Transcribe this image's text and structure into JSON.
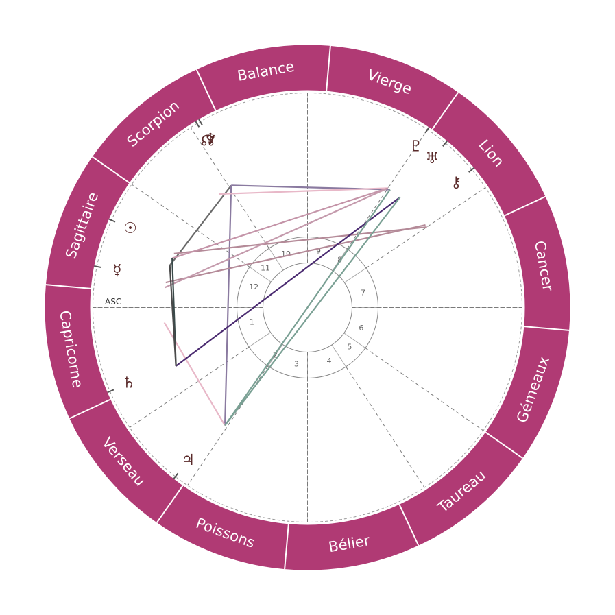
{
  "colors": {
    "ring": "#b03a74",
    "ring_divider": "#ffffff",
    "axis": "#7a7a7a",
    "house_circle": "#888888",
    "glyph": "#5a2a2a"
  },
  "asc_label": "ASC",
  "signs": [
    {
      "id": "capricorne",
      "label": "Capricorne",
      "angle": 180
    },
    {
      "id": "sagittaire",
      "label": "Sagittaire",
      "angle": 150
    },
    {
      "id": "scorpion",
      "label": "Scorpion",
      "angle": 120
    },
    {
      "id": "balance",
      "label": "Balance",
      "angle": 90
    },
    {
      "id": "vierge",
      "label": "Vierge",
      "angle": 60
    },
    {
      "id": "lion",
      "label": "Lion",
      "angle": 30
    },
    {
      "id": "cancer",
      "label": "Cancer",
      "angle": 0
    },
    {
      "id": "gemeaux",
      "label": "Gémeaux",
      "angle": -30
    },
    {
      "id": "taureau",
      "label": "Taureau",
      "angle": -60
    },
    {
      "id": "belier",
      "label": "Bélier",
      "angle": -90
    },
    {
      "id": "poissons",
      "label": "Poissons",
      "angle": -120
    },
    {
      "id": "verseau",
      "label": "Verseau",
      "angle": -150
    }
  ],
  "houses": [
    {
      "num": "1",
      "angle": -165
    },
    {
      "num": "2",
      "angle": -124
    },
    {
      "num": "3",
      "angle": -101
    },
    {
      "num": "4",
      "angle": -68
    },
    {
      "num": "5",
      "angle": -43
    },
    {
      "num": "6",
      "angle": -21
    },
    {
      "num": "7",
      "angle": 15
    },
    {
      "num": "8",
      "angle": 56
    },
    {
      "num": "9",
      "angle": 79
    },
    {
      "num": "10",
      "angle": 112
    },
    {
      "num": "11",
      "angle": 137
    },
    {
      "num": "12",
      "angle": 159
    }
  ],
  "house_cusps": [
    180,
    145,
    123,
    90,
    56,
    34,
    0,
    -35,
    -57,
    -90,
    -124,
    -146
  ],
  "planets": [
    {
      "id": "sun",
      "glyph": "☉",
      "name": "sun-icon",
      "angle": 156
    },
    {
      "id": "mercury",
      "glyph": "☿",
      "name": "mercury-icon",
      "angle": 169
    },
    {
      "id": "saturn",
      "glyph": "♄",
      "name": "saturn-icon",
      "angle": -157
    },
    {
      "id": "jupiter",
      "glyph": "♃",
      "name": "jupiter-icon",
      "angle": -128
    },
    {
      "id": "pluto",
      "glyph": "♇",
      "name": "pluto-icon",
      "angle": 56
    },
    {
      "id": "uranus",
      "glyph": "♅",
      "name": "uranus-icon",
      "angle": 50
    },
    {
      "id": "chiron",
      "glyph": "⚷",
      "name": "chiron-icon",
      "angle": 40
    },
    {
      "id": "node",
      "glyph": "☊",
      "name": "node-icon",
      "angle": 121
    },
    {
      "id": "neptune",
      "glyph": "♆",
      "name": "neptune-icon",
      "angle": 120
    }
  ],
  "aspects": [
    {
      "from": 122,
      "to": 55,
      "color": "#8a7aa0"
    },
    {
      "from": 122,
      "to": 163,
      "color": "#6a6a6a"
    },
    {
      "from": 122,
      "to": -125,
      "color": "#8a7aa0"
    },
    {
      "from": 128,
      "to": 56,
      "color": "#e8b8c8"
    },
    {
      "from": 158,
      "to": 34,
      "color": "#b48a98"
    },
    {
      "from": 160,
      "to": 56,
      "color": "#c494a8"
    },
    {
      "from": 170,
      "to": 35,
      "color": "#b48a98"
    },
    {
      "from": 172,
      "to": 56,
      "color": "#c49aac"
    },
    {
      "from": 186,
      "to": -125,
      "color": "#e8b8c8"
    },
    {
      "from": 160,
      "to": -156,
      "color": "#3a4a4a"
    },
    {
      "from": -156,
      "to": 50,
      "color": "#4a2a70"
    },
    {
      "from": -125,
      "to": 55,
      "color": "#7aa094"
    },
    {
      "from": -125,
      "to": 50,
      "color": "#7aa094"
    },
    {
      "from": 163,
      "to": -156,
      "color": "#4a4a4a"
    }
  ]
}
